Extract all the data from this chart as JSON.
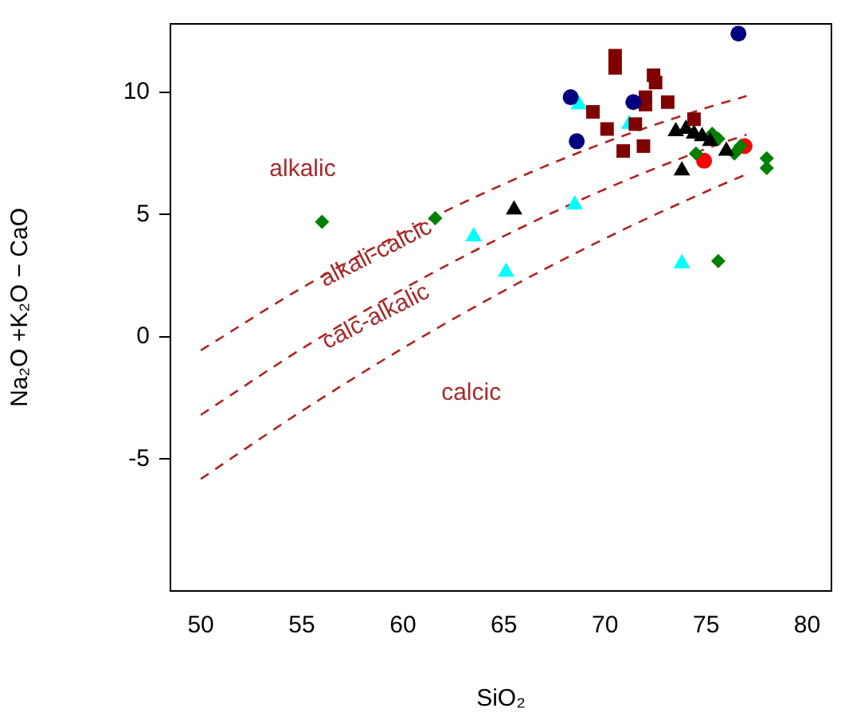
{
  "chart_data": {
    "type": "scatter",
    "xlabel": "SiO₂",
    "ylabel": "Na₂O +K₂O − CaO",
    "xlim": [
      48.5,
      81.2
    ],
    "ylim": [
      -10.4,
      12.8
    ],
    "xticks": [
      50,
      55,
      60,
      65,
      70,
      75,
      80
    ],
    "yticks": [
      -5,
      0,
      5,
      10
    ],
    "grid": false,
    "legend": false,
    "series": [
      {
        "type": "line",
        "color": "#b22222",
        "line_style": "dashed",
        "marker": "none",
        "x": [
          50,
          55,
          60,
          65,
          70,
          75,
          77
        ],
        "values": [
          -0.56,
          2.0,
          4.27,
          6.25,
          7.95,
          9.36,
          9.85
        ]
      },
      {
        "type": "line",
        "color": "#b22222",
        "line_style": "dashed",
        "marker": "none",
        "x": [
          50,
          55,
          60,
          65,
          70,
          75,
          77
        ],
        "values": [
          -3.2,
          -0.49,
          1.95,
          4.12,
          6.04,
          7.69,
          8.27
        ]
      },
      {
        "type": "line",
        "color": "#b22222",
        "line_style": "dashed",
        "marker": "none",
        "x": [
          50,
          55,
          60,
          65,
          70,
          75,
          77
        ],
        "values": [
          -5.82,
          -3.04,
          -0.47,
          1.88,
          4.02,
          5.94,
          6.65
        ]
      },
      {
        "color": "#000080",
        "marker": "circle",
        "x": [
          68.3,
          68.6,
          71.4,
          76.6
        ],
        "values": [
          9.8,
          8.0,
          9.6,
          12.4
        ]
      },
      {
        "color": "#800000",
        "marker": "square",
        "x": [
          70.5,
          70.5,
          72.4,
          72.5,
          72.0,
          72.0,
          73.1,
          69.4,
          70.1,
          71.5,
          71.9,
          70.9,
          74.4
        ],
        "values": [
          11.5,
          11.0,
          10.7,
          10.4,
          9.8,
          9.5,
          9.6,
          9.2,
          8.5,
          8.7,
          7.8,
          7.6,
          8.9
        ]
      },
      {
        "color": "#000000",
        "marker": "triangle",
        "x": [
          73.5,
          74.0,
          74.4,
          74.8,
          75.2,
          73.8,
          76.0,
          65.5
        ],
        "values": [
          8.4,
          8.5,
          8.3,
          8.2,
          8.0,
          6.8,
          7.6,
          5.2
        ]
      },
      {
        "color": "#008000",
        "marker": "diamond",
        "x": [
          75.3,
          75.6,
          76.7,
          76.4,
          78.0,
          78.0,
          74.5,
          56.0,
          61.6,
          75.6
        ],
        "values": [
          8.3,
          8.1,
          7.8,
          7.5,
          7.3,
          6.9,
          7.5,
          4.7,
          4.85,
          3.1
        ]
      },
      {
        "color": "#ff0000",
        "marker": "circle",
        "x": [
          74.9,
          76.9
        ],
        "values": [
          7.2,
          7.8
        ]
      },
      {
        "color": "#00ffff",
        "marker": "triangle",
        "x": [
          68.7,
          71.2,
          68.5,
          63.5,
          65.1,
          73.8
        ],
        "values": [
          9.5,
          8.7,
          5.4,
          4.1,
          2.65,
          3.0
        ]
      }
    ],
    "annotations": [
      "alkalic",
      "alkali-calcic",
      "calc-alkalic",
      "calcic"
    ]
  }
}
